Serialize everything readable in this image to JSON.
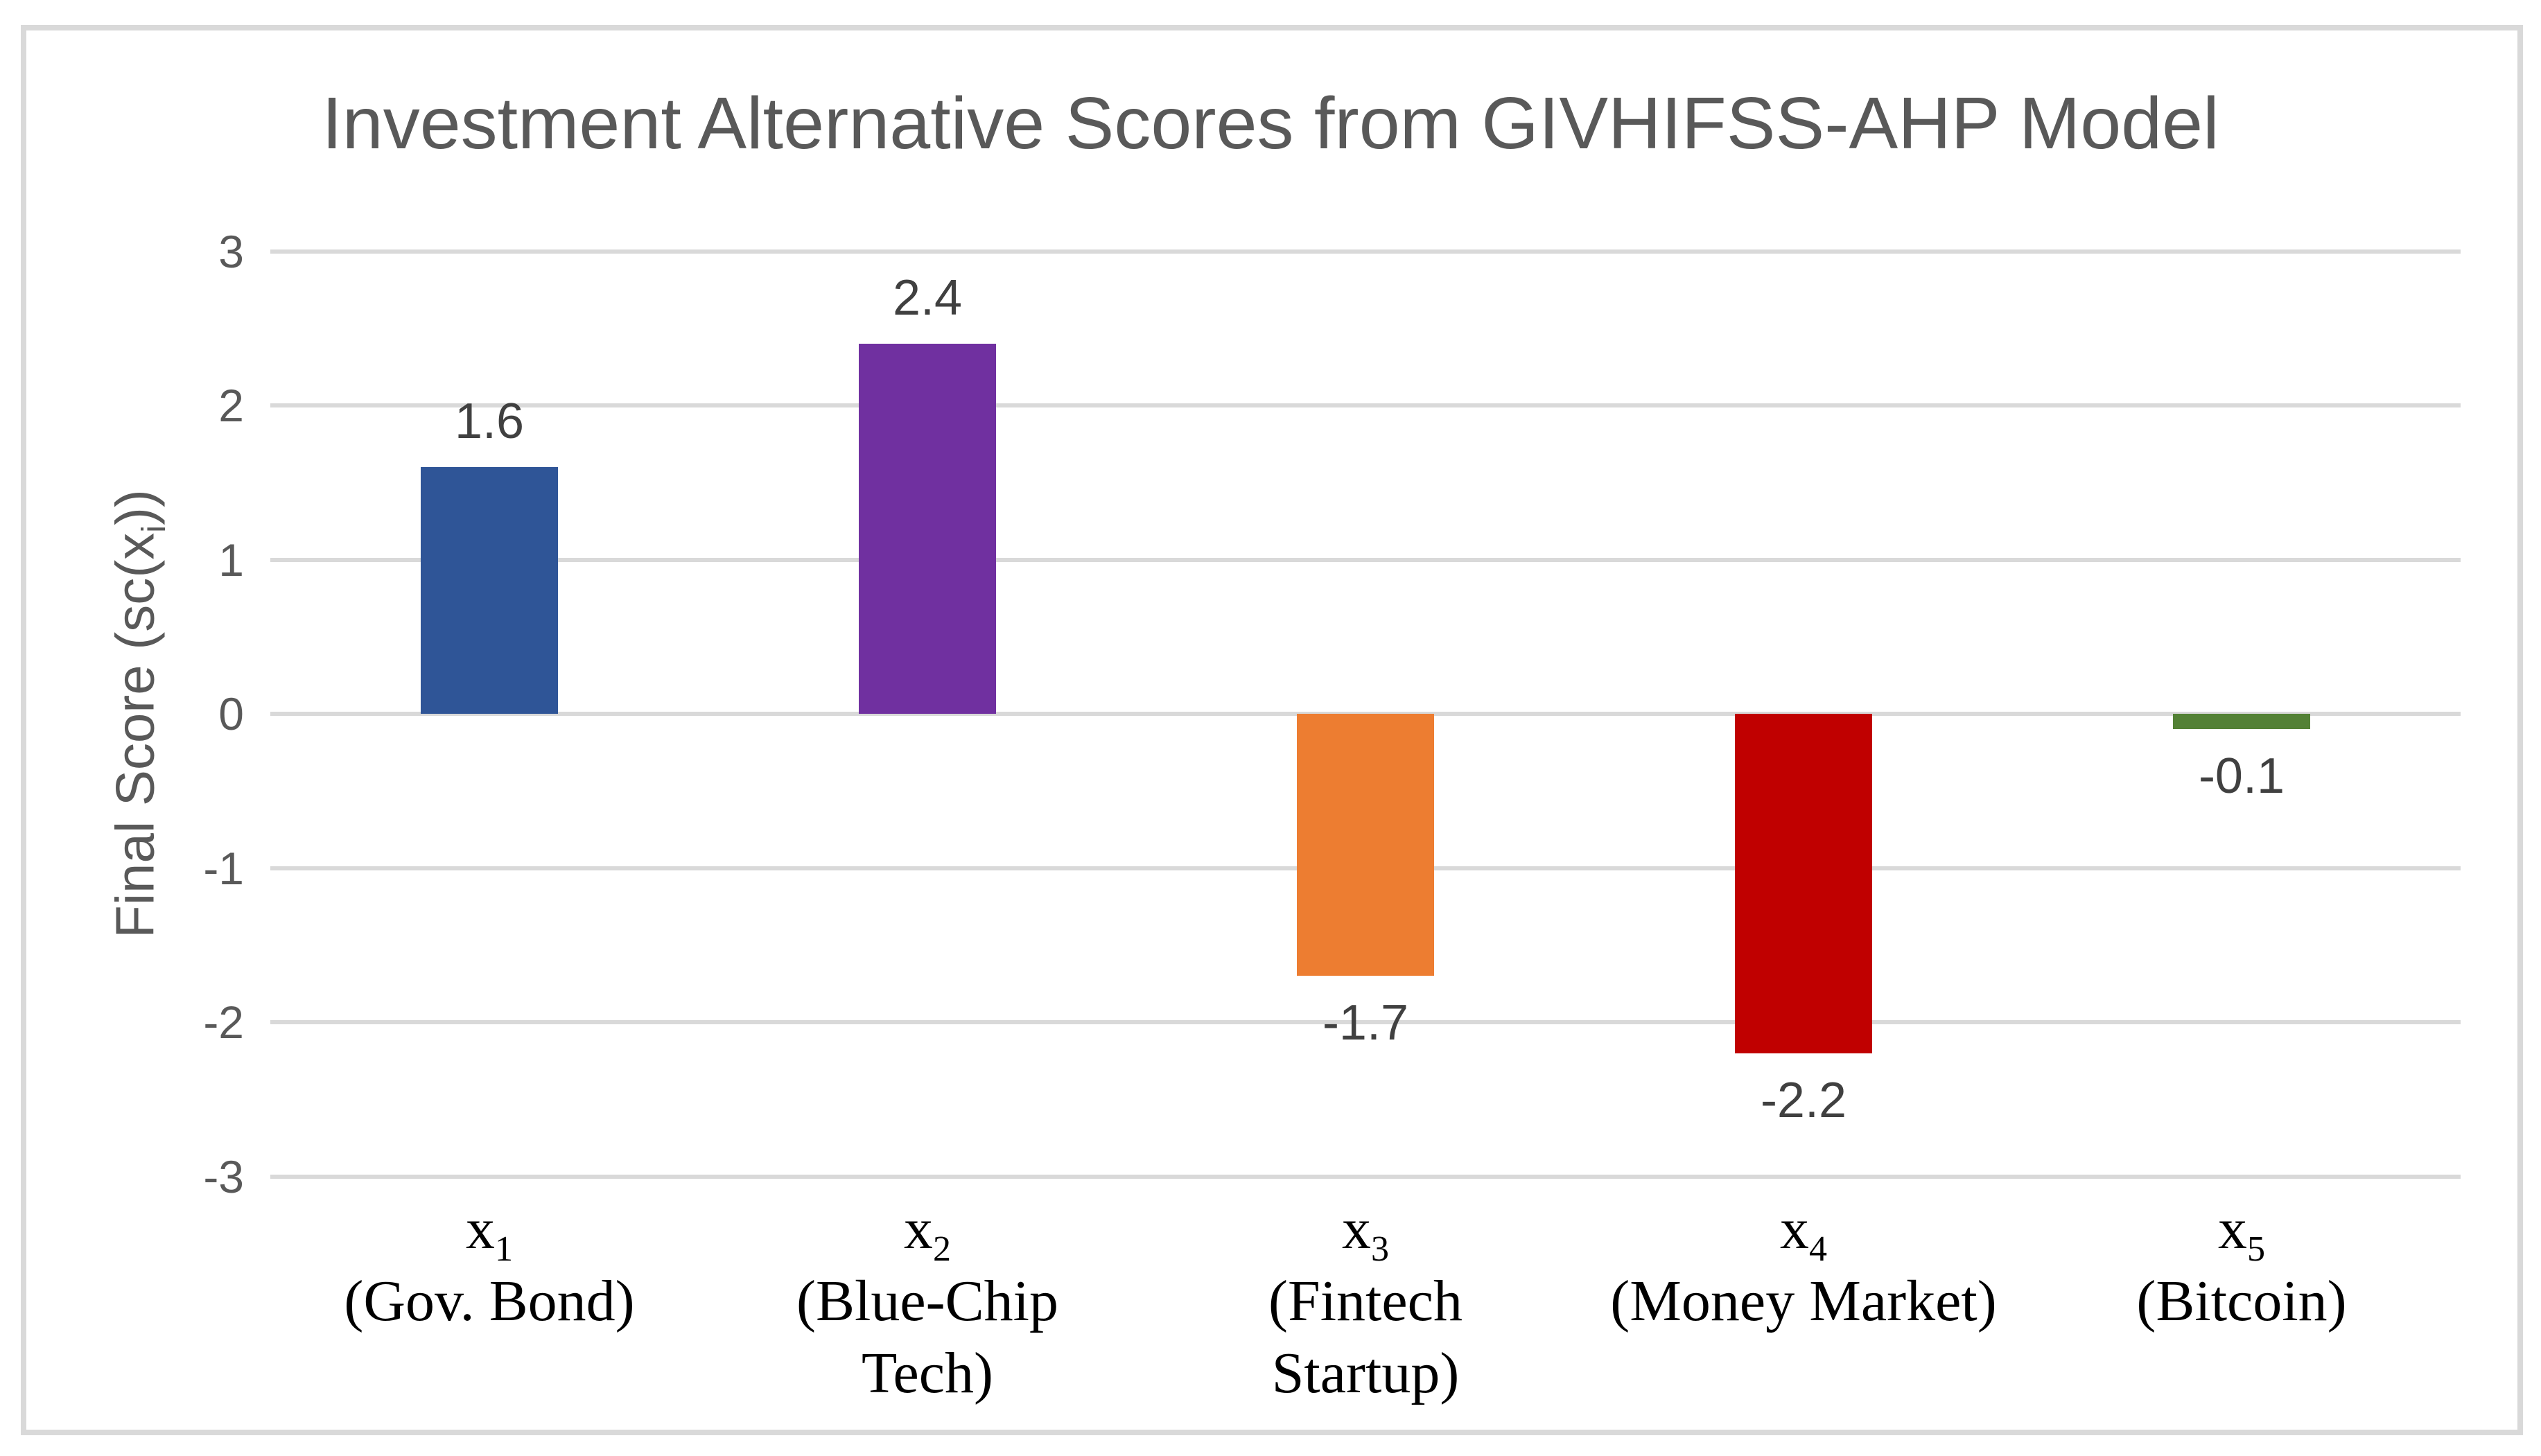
{
  "chart_data": {
    "type": "bar",
    "title": "Investment Alternative Scores from GIVHIFSS-AHP Model",
    "ylabel": "Final Score (sc(x_i))",
    "ylabel_parts": {
      "pre": "Final Score (sc(x",
      "sub": "i",
      "post": "))"
    },
    "categories": [
      {
        "symbol": "x",
        "sub": "1",
        "desc_lines": [
          "(Gov. Bond)"
        ]
      },
      {
        "symbol": "x",
        "sub": "2",
        "desc_lines": [
          "(Blue-Chip",
          "Tech)"
        ]
      },
      {
        "symbol": "x",
        "sub": "3",
        "desc_lines": [
          "(Fintech",
          "Startup)"
        ]
      },
      {
        "symbol": "x",
        "sub": "4",
        "desc_lines": [
          "(Money Market)"
        ]
      },
      {
        "symbol": "x",
        "sub": "5",
        "desc_lines": [
          "(Bitcoin)"
        ]
      }
    ],
    "values": [
      1.6,
      2.4,
      -1.7,
      -2.2,
      -0.1
    ],
    "value_labels": [
      "1.6",
      "2.4",
      "-1.7",
      "-2.2",
      "-0.1"
    ],
    "bar_colors": [
      "#2F5597",
      "#7030A0",
      "#ED7D31",
      "#C00000",
      "#538135"
    ],
    "yticks": [
      "3",
      "2",
      "1",
      "0",
      "-1",
      "-2",
      "-3"
    ],
    "ytick_values": [
      3,
      2,
      1,
      0,
      -1,
      -2,
      -3
    ],
    "ylim": [
      -3,
      3
    ],
    "grid": true,
    "legend": false
  },
  "styles": {
    "background": "#FFFFFF",
    "frame_color": "#D9D9D9",
    "gridline_color": "#D9D9D9",
    "title_color": "#595959",
    "tick_color": "#595959",
    "value_label_color": "#404040",
    "category_color": "#000000"
  }
}
